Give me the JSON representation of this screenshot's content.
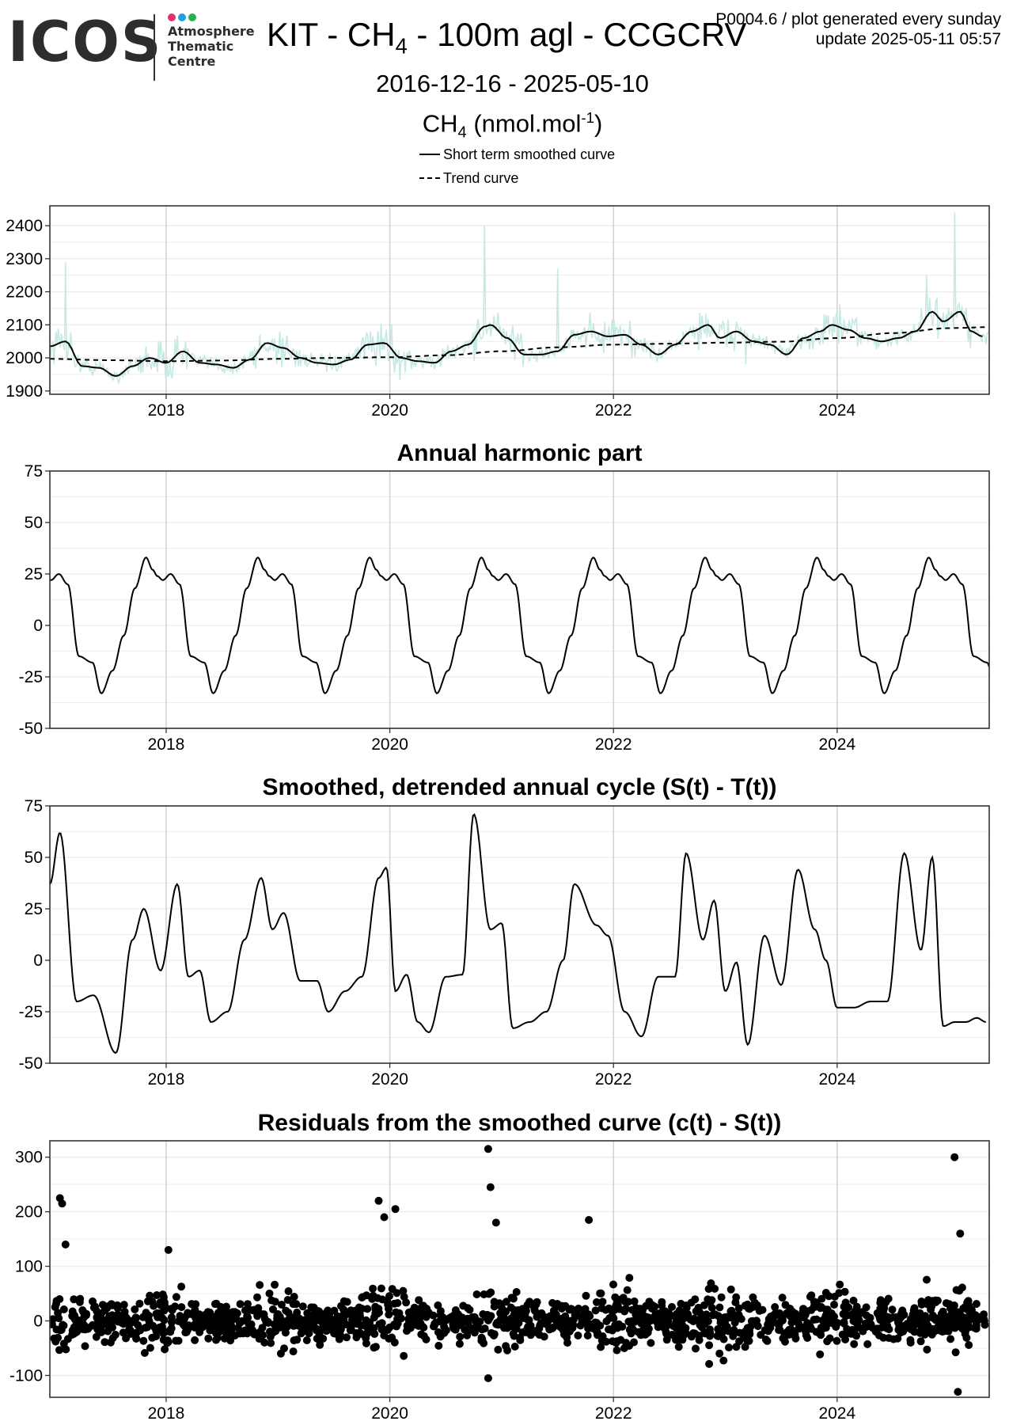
{
  "header": {
    "logo_text": "ICOS",
    "logo_subtitle": [
      "Atmosphere",
      "Thematic",
      "Centre"
    ],
    "logo_dot_colors": [
      "#e6306e",
      "#1aa3e0",
      "#27b34a"
    ],
    "title_pre": "KIT - CH",
    "title_sub": "4",
    "title_post": " - 100m agl - CCGCRV",
    "date_range": "2016-12-16 - 2025-05-10",
    "corner_line1": "P0004.6 / plot generated every sunday",
    "corner_line2": "update  2025-05-11 05:57",
    "unit_pre": "CH",
    "unit_sub": "4",
    "unit_mid": " (nmol.mol",
    "unit_sup": "-1",
    "unit_post": ")",
    "legend_short_term": "Short term smoothed curve",
    "legend_trend": "Trend curve"
  },
  "colors": {
    "raw_data": "#c6e9e3",
    "curve": "#000000",
    "grid_major": "#d4d4d4",
    "grid_minor": "#ececec",
    "panel_border": "#333333"
  },
  "chart_data": [
    {
      "type": "line",
      "title": "",
      "x_range": [
        2016.96,
        2025.36
      ],
      "x_ticks": [
        2018,
        2020,
        2022,
        2024
      ],
      "ylim": [
        1890,
        2460
      ],
      "y_ticks": [
        1900,
        2000,
        2100,
        2200,
        2300,
        2400
      ],
      "grid": true,
      "series": [
        {
          "name": "Short term smoothed curve",
          "style": "solid",
          "x": [
            2016.96,
            2017.1,
            2017.25,
            2017.4,
            2017.55,
            2017.7,
            2017.85,
            2018.0,
            2018.15,
            2018.3,
            2018.45,
            2018.6,
            2018.75,
            2018.9,
            2019.05,
            2019.2,
            2019.35,
            2019.5,
            2019.65,
            2019.8,
            2019.95,
            2020.1,
            2020.25,
            2020.4,
            2020.55,
            2020.7,
            2020.85,
            2020.9,
            2021.05,
            2021.2,
            2021.35,
            2021.5,
            2021.65,
            2021.8,
            2021.95,
            2022.1,
            2022.25,
            2022.4,
            2022.55,
            2022.7,
            2022.85,
            2022.95,
            2023.1,
            2023.25,
            2023.4,
            2023.55,
            2023.7,
            2023.85,
            2023.95,
            2024.1,
            2024.25,
            2024.4,
            2024.55,
            2024.7,
            2024.85,
            2024.95,
            2025.1,
            2025.2,
            2025.3
          ],
          "y": [
            2035,
            2050,
            1975,
            1970,
            1945,
            1975,
            2000,
            1985,
            2020,
            1985,
            1980,
            1970,
            1995,
            2045,
            2030,
            2000,
            1985,
            1980,
            1995,
            2040,
            2045,
            2000,
            1990,
            1985,
            2020,
            2040,
            2095,
            2100,
            2060,
            2010,
            2010,
            2020,
            2070,
            2080,
            2065,
            2070,
            2040,
            2010,
            2040,
            2080,
            2100,
            2060,
            2080,
            2050,
            2040,
            2010,
            2060,
            2080,
            2100,
            2085,
            2060,
            2050,
            2060,
            2080,
            2140,
            2110,
            2140,
            2080,
            2065
          ]
        },
        {
          "name": "Trend curve",
          "style": "dashed",
          "x": [
            2016.96,
            2017.5,
            2018.0,
            2018.5,
            2019.0,
            2019.5,
            2020.0,
            2020.5,
            2021.0,
            2021.5,
            2022.0,
            2022.5,
            2023.0,
            2023.5,
            2024.0,
            2024.5,
            2025.0,
            2025.36
          ],
          "y": [
            1997,
            1993,
            1990,
            1992,
            1997,
            2000,
            2002,
            2008,
            2020,
            2032,
            2040,
            2043,
            2046,
            2049,
            2060,
            2075,
            2090,
            2093
          ]
        }
      ],
      "raw_observations": {
        "x_start": 2016.96,
        "x_end": 2025.36,
        "spike_x": [
          2017.1,
          2020.85,
          2021.5,
          2024.8,
          2025.05
        ],
        "spike_y": [
          2290,
          2400,
          2270,
          2250,
          2440
        ]
      }
    },
    {
      "type": "line",
      "title": "Annual harmonic part",
      "x_range": [
        2016.96,
        2025.36
      ],
      "x_ticks": [
        2018,
        2020,
        2022,
        2024
      ],
      "ylim": [
        -50,
        75
      ],
      "y_ticks": [
        -50,
        -25,
        0,
        25,
        50,
        75
      ],
      "grid": true,
      "series": [
        {
          "name": "",
          "style": "solid",
          "period": 1.0,
          "phase_x": [
            0.0,
            0.05,
            0.12,
            0.2,
            0.3,
            0.42,
            0.5,
            0.6,
            0.7,
            0.8,
            0.9,
            0.96,
            1.0
          ],
          "phase_y": [
            24,
            22,
            25,
            20,
            -15,
            -18,
            -33,
            -22,
            -5,
            18,
            33,
            27,
            24
          ],
          "x_start_phase_offset": 0.04
        }
      ]
    },
    {
      "type": "line",
      "title": "Smoothed, detrended annual cycle (S(t) - T(t))",
      "x_range": [
        2016.96,
        2025.36
      ],
      "x_ticks": [
        2018,
        2020,
        2022,
        2024
      ],
      "ylim": [
        -50,
        75
      ],
      "y_ticks": [
        -50,
        -25,
        0,
        25,
        50,
        75
      ],
      "grid": true,
      "series": [
        {
          "name": "",
          "style": "solid",
          "x": [
            2016.96,
            2017.05,
            2017.2,
            2017.35,
            2017.55,
            2017.7,
            2017.8,
            2017.95,
            2018.1,
            2018.2,
            2018.3,
            2018.4,
            2018.55,
            2018.7,
            2018.85,
            2018.95,
            2019.05,
            2019.2,
            2019.35,
            2019.45,
            2019.6,
            2019.75,
            2019.9,
            2019.97,
            2020.05,
            2020.15,
            2020.25,
            2020.35,
            2020.5,
            2020.65,
            2020.75,
            2020.9,
            2021.0,
            2021.1,
            2021.25,
            2021.4,
            2021.55,
            2021.65,
            2021.85,
            2021.95,
            2022.1,
            2022.25,
            2022.4,
            2022.55,
            2022.65,
            2022.8,
            2022.9,
            2023.0,
            2023.1,
            2023.2,
            2023.35,
            2023.5,
            2023.65,
            2023.8,
            2023.9,
            2024.0,
            2024.15,
            2024.3,
            2024.45,
            2024.6,
            2024.75,
            2024.85,
            2024.95,
            2025.05,
            2025.15,
            2025.25,
            2025.33
          ],
          "y": [
            37,
            62,
            -20,
            -17,
            -45,
            10,
            25,
            -5,
            37,
            -8,
            -5,
            -30,
            -25,
            10,
            40,
            15,
            23,
            -10,
            -10,
            -25,
            -15,
            -8,
            40,
            45,
            -15,
            -7,
            -30,
            -35,
            -8,
            -7,
            71,
            15,
            18,
            -33,
            -30,
            -25,
            0,
            37,
            17,
            12,
            -25,
            -37,
            -8,
            -8,
            52,
            10,
            29,
            -15,
            -1,
            -41,
            12,
            -12,
            44,
            15,
            0,
            -23,
            -23,
            -20,
            -20,
            52,
            5,
            50,
            -32,
            -30,
            -30,
            -28,
            -30
          ]
        }
      ]
    },
    {
      "type": "scatter",
      "title": "Residuals from the smoothed curve (c(t) - S(t))",
      "x_range": [
        2016.96,
        2025.36
      ],
      "x_ticks": [
        2018,
        2020,
        2022,
        2024
      ],
      "ylim": [
        -140,
        330
      ],
      "y_ticks": [
        -100,
        0,
        100,
        200,
        300
      ],
      "grid": true,
      "series": [
        {
          "name": "",
          "notable_points": {
            "x": [
              2017.05,
              2017.07,
              2017.1,
              2018.02,
              2019.9,
              2019.95,
              2020.05,
              2020.88,
              2020.9,
              2020.95,
              2021.78,
              2025.05,
              2025.1,
              2020.88,
              2025.08
            ],
            "y": [
              225,
              215,
              140,
              130,
              220,
              190,
              205,
              315,
              245,
              180,
              185,
              300,
              160,
              -105,
              -130
            ]
          },
          "bulk_spread": 60,
          "count": 1500
        }
      ]
    }
  ]
}
